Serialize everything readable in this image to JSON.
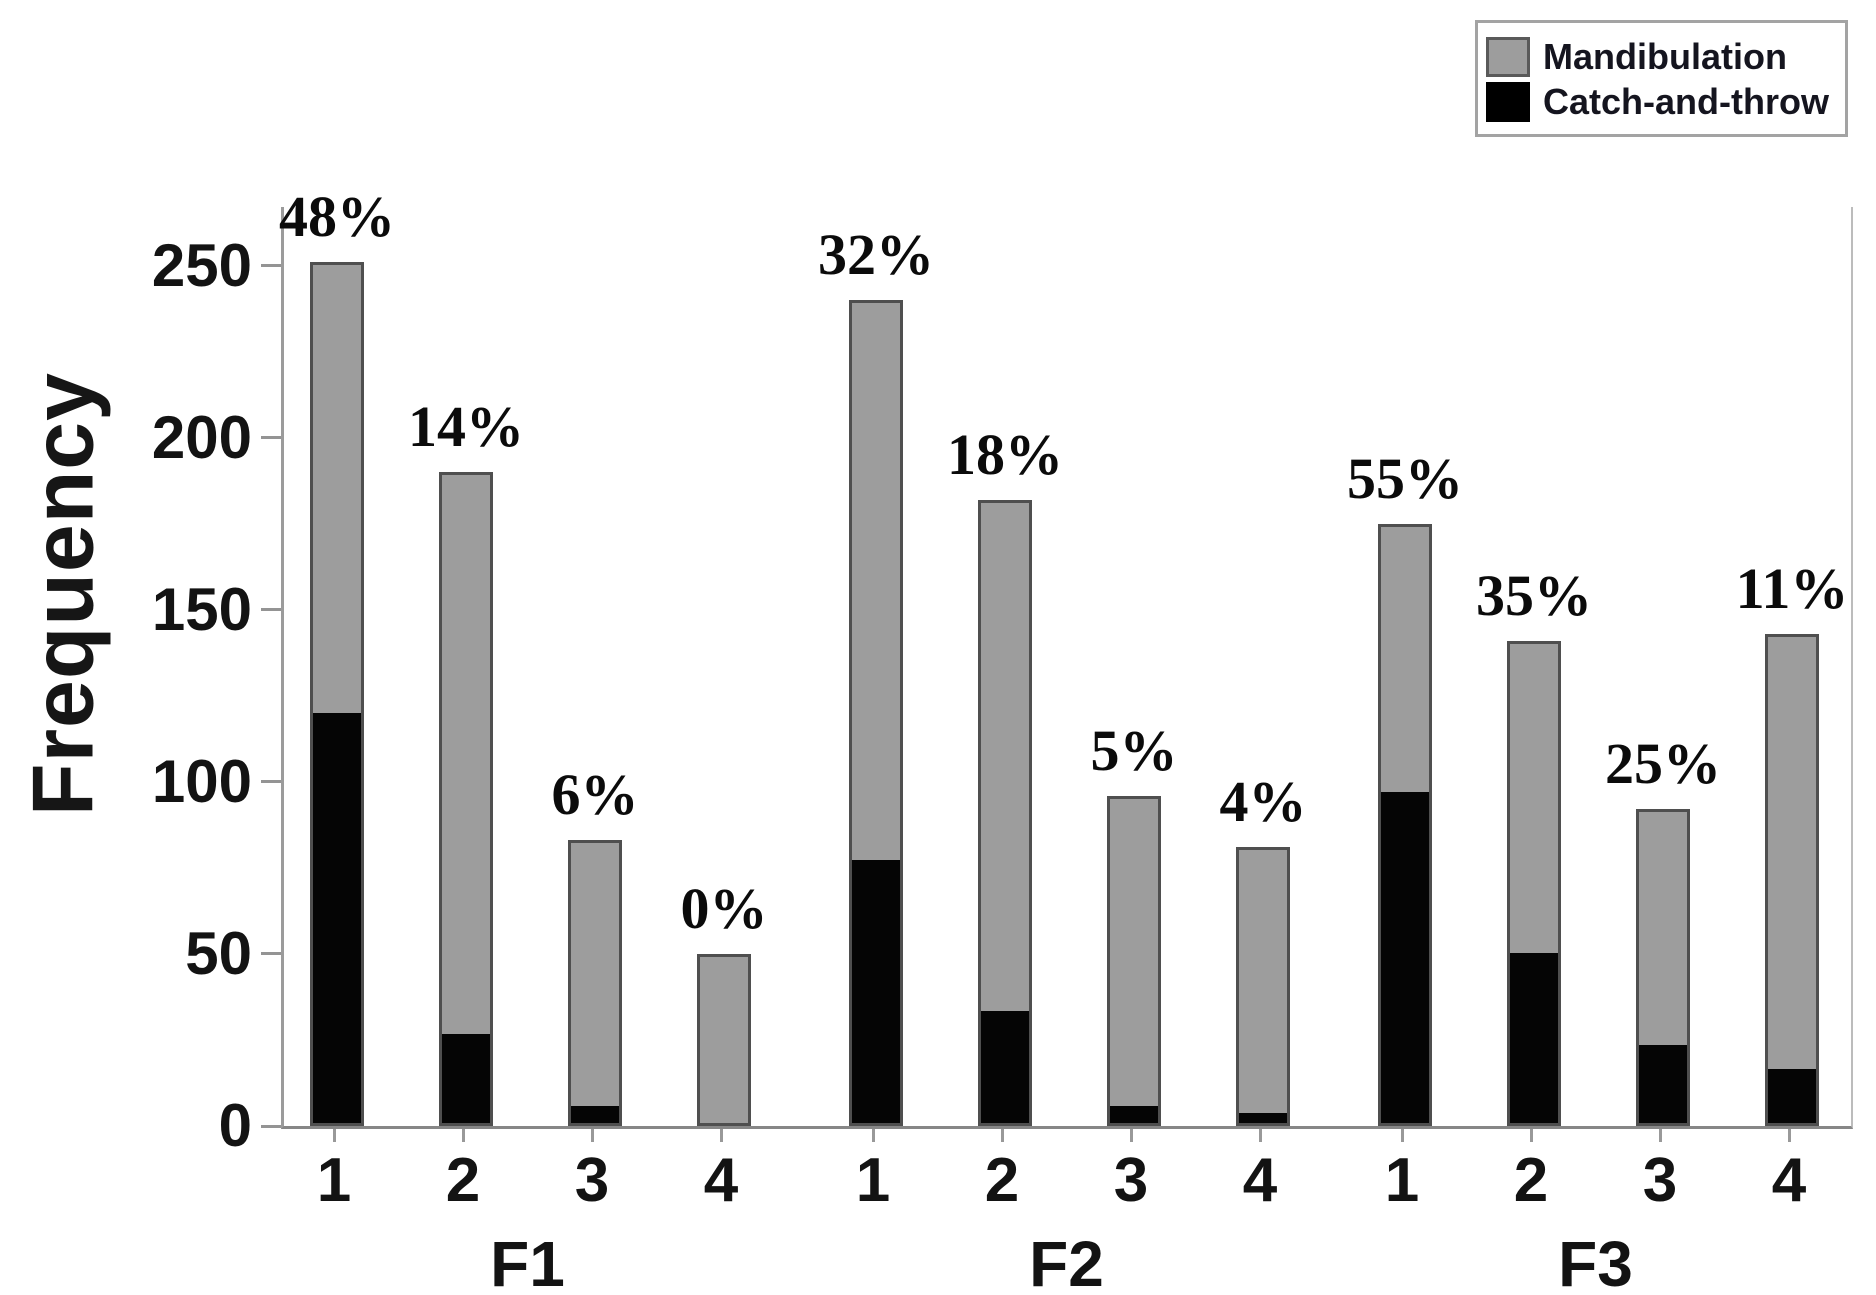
{
  "y_axis": {
    "label": "Frequency",
    "ticks": [
      0,
      50,
      100,
      150,
      200,
      250
    ]
  },
  "legend": {
    "items": [
      {
        "label": "Mandibulation",
        "color": "#9d9d9d"
      },
      {
        "label": "Catch-and-throw",
        "color": "#050505"
      }
    ]
  },
  "chart_data": {
    "type": "bar",
    "stacked": true,
    "ylabel": "Frequency",
    "ylim": [
      0,
      267
    ],
    "y_ticks": [
      0,
      50,
      100,
      150,
      200,
      250
    ],
    "grid": false,
    "legend_position": "top-right",
    "categories": [
      "1",
      "2",
      "3",
      "4"
    ],
    "series_names": [
      "Mandibulation",
      "Catch-and-throw"
    ],
    "series_colors": {
      "mandibulation": "#9d9d9d",
      "catch_and_throw": "#050505"
    },
    "groups": [
      {
        "label": "F1",
        "bars": [
          {
            "category": "1",
            "total": 251,
            "catch_and_throw": 120,
            "mandibulation": 131,
            "pct_label": "48%"
          },
          {
            "category": "2",
            "total": 190,
            "catch_and_throw": 26,
            "mandibulation": 164,
            "pct_label": "14%"
          },
          {
            "category": "3",
            "total": 83,
            "catch_and_throw": 5,
            "mandibulation": 78,
            "pct_label": "6%"
          },
          {
            "category": "4",
            "total": 50,
            "catch_and_throw": 0,
            "mandibulation": 50,
            "pct_label": "0%"
          }
        ]
      },
      {
        "label": "F2",
        "bars": [
          {
            "category": "1",
            "total": 240,
            "catch_and_throw": 77,
            "mandibulation": 163,
            "pct_label": "32%"
          },
          {
            "category": "2",
            "total": 182,
            "catch_and_throw": 33,
            "mandibulation": 149,
            "pct_label": "18%"
          },
          {
            "category": "3",
            "total": 96,
            "catch_and_throw": 5,
            "mandibulation": 91,
            "pct_label": "5%"
          },
          {
            "category": "4",
            "total": 81,
            "catch_and_throw": 3,
            "mandibulation": 78,
            "pct_label": "4%"
          }
        ]
      },
      {
        "label": "F3",
        "bars": [
          {
            "category": "1",
            "total": 175,
            "catch_and_throw": 97,
            "mandibulation": 78,
            "pct_label": "55%"
          },
          {
            "category": "2",
            "total": 141,
            "catch_and_throw": 50,
            "mandibulation": 91,
            "pct_label": "35%"
          },
          {
            "category": "3",
            "total": 92,
            "catch_and_throw": 23,
            "mandibulation": 69,
            "pct_label": "25%"
          },
          {
            "category": "4",
            "total": 143,
            "catch_and_throw": 16,
            "mandibulation": 127,
            "pct_label": "11%"
          }
        ]
      }
    ]
  }
}
